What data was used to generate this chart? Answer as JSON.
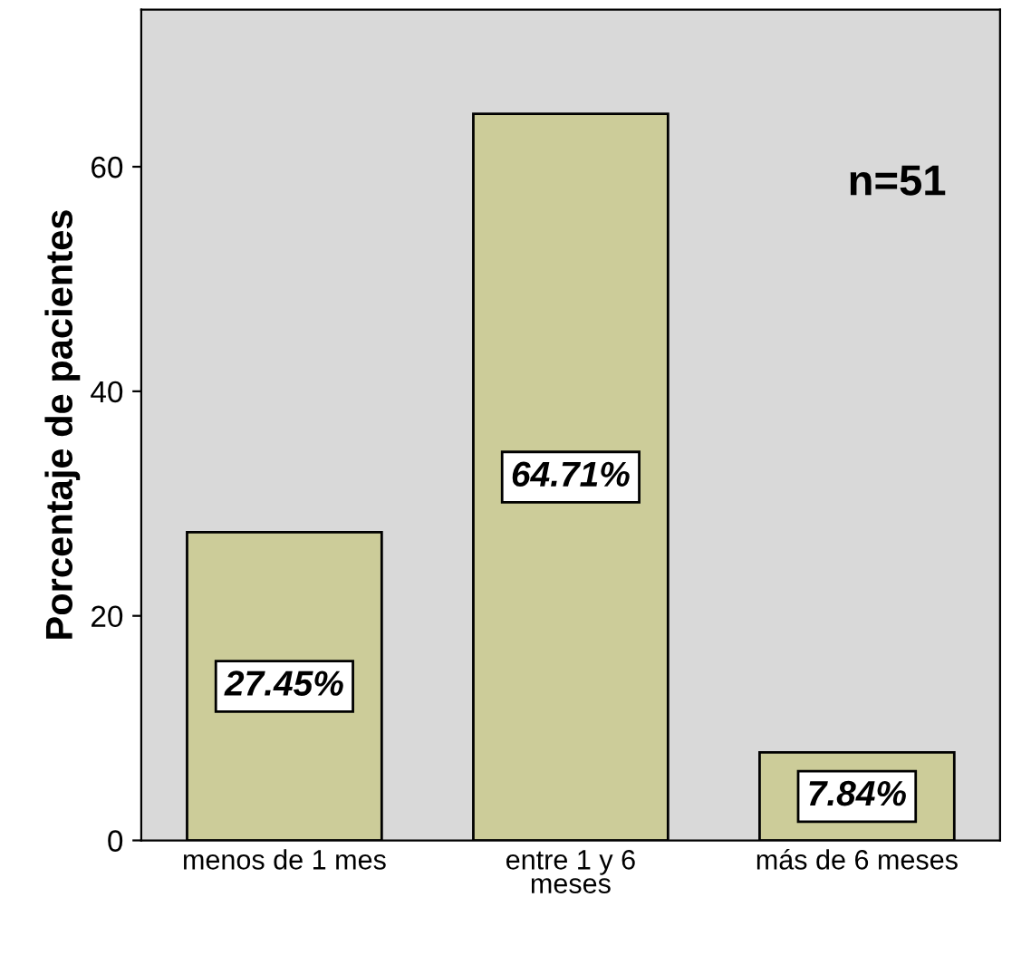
{
  "chart_data": {
    "type": "bar",
    "ylabel": "Porcentaje de pacientes",
    "categories": [
      "menos de 1 mes",
      "entre 1 y 6\nmeses",
      "más de 6 meses"
    ],
    "values": [
      27.45,
      64.71,
      7.84
    ],
    "value_labels": [
      "27.45%",
      "64.71%",
      "7.84%"
    ],
    "color": "#cccc99",
    "ylim": [
      0,
      74
    ],
    "yticks": [
      0,
      20,
      40,
      60
    ],
    "grid": false,
    "annotations": [
      {
        "text": "n=51"
      }
    ]
  }
}
